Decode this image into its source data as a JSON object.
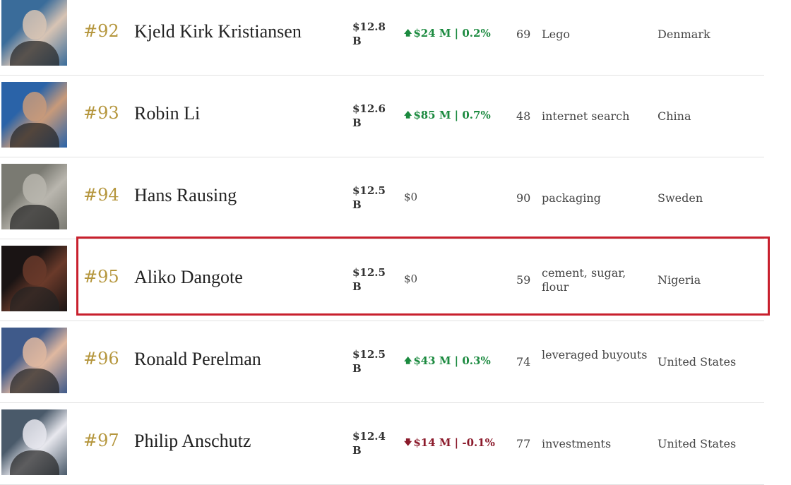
{
  "rows": [
    {
      "rank": "#92",
      "name": "Kjeld Kirk Kristiansen",
      "worth": "$12.8 B",
      "change": "$24 M | 0.2%",
      "direction": "up",
      "age": "69",
      "source": "Lego",
      "country": "Denmark",
      "photo_colors": [
        "#3a6c9a",
        "#d8c4b4"
      ]
    },
    {
      "rank": "#93",
      "name": "Robin Li",
      "worth": "$12.6 B",
      "change": "$85 M | 0.7%",
      "direction": "up",
      "age": "48",
      "source": "internet search",
      "country": "China",
      "photo_colors": [
        "#2a63a8",
        "#c89a7a"
      ]
    },
    {
      "rank": "#94",
      "name": "Hans Rausing",
      "worth": "$12.5 B",
      "change": "$0",
      "direction": "none",
      "age": "90",
      "source": "packaging",
      "country": "Sweden",
      "photo_colors": [
        "#7a7a72",
        "#b9b6ae"
      ]
    },
    {
      "rank": "#95",
      "name": "Aliko Dangote",
      "worth": "$12.5 B",
      "change": "$0",
      "direction": "none",
      "age": "59",
      "source": "cement, sugar, flour",
      "country": "Nigeria",
      "photo_colors": [
        "#1a1414",
        "#6a3a2a"
      ]
    },
    {
      "rank": "#96",
      "name": "Ronald Perelman",
      "worth": "$12.5 B",
      "change": "$43 M | 0.3%",
      "direction": "up",
      "age": "74",
      "source": "leveraged buyouts",
      "country": "United States",
      "photo_colors": [
        "#3f5a8a",
        "#e0b8a0"
      ]
    },
    {
      "rank": "#97",
      "name": "Philip Anschutz",
      "worth": "$12.4 B",
      "change": "$14 M | -0.1%",
      "direction": "down",
      "age": "77",
      "source": "investments",
      "country": "United States",
      "photo_colors": [
        "#4a5a6a",
        "#e8e8ee"
      ]
    }
  ],
  "highlighted_rank": "#95",
  "colors": {
    "rank": "#b5963d",
    "up": "#1b8a3f",
    "down": "#8b1a2b",
    "highlight": "#c8202d"
  }
}
